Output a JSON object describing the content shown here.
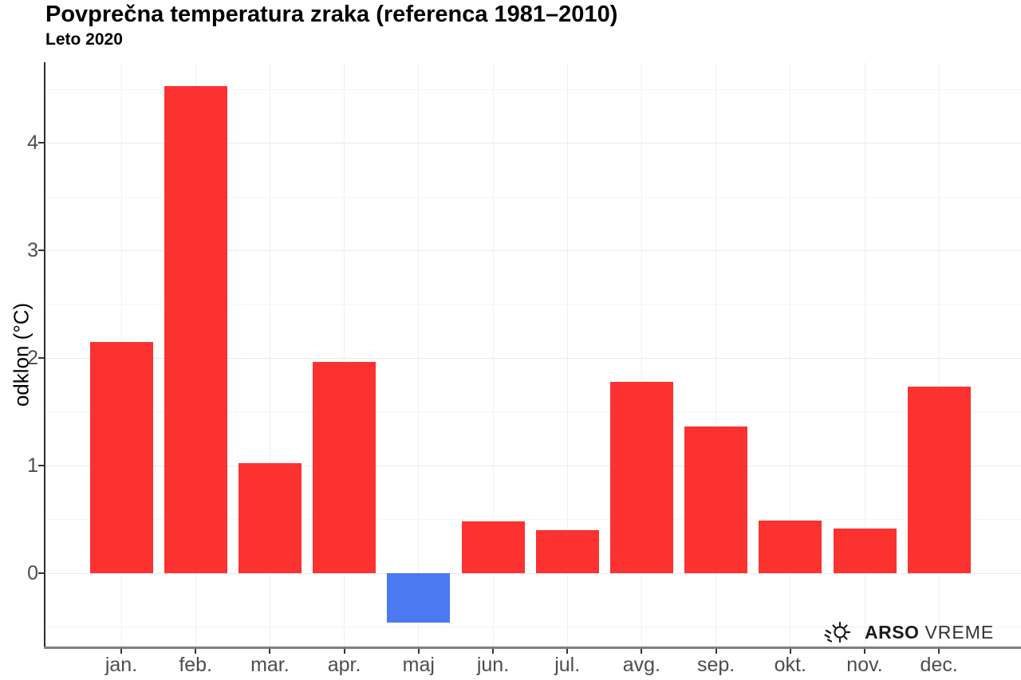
{
  "header": {
    "title": "Povprečna temperatura zraka (referenca 1981–2010)",
    "subtitle": "Leto 2020"
  },
  "branding": {
    "agency": "ARSO",
    "product": "VREME",
    "icon": "sun-icon"
  },
  "chart_data": {
    "type": "bar",
    "title": "Povprečna temperatura zraka (referenca 1981–2010)",
    "subtitle": "Leto 2020",
    "categories": [
      "jan.",
      "feb.",
      "mar.",
      "apr.",
      "maj",
      "jun.",
      "jul.",
      "avg.",
      "sep.",
      "okt.",
      "nov.",
      "dec."
    ],
    "values": [
      2.15,
      4.53,
      1.02,
      1.96,
      -0.46,
      0.48,
      0.4,
      1.78,
      1.36,
      0.49,
      0.41,
      1.73
    ],
    "xlabel": "",
    "ylabel": "odklon (°C)",
    "ylim": [
      -0.7,
      4.75
    ],
    "y_major_ticks": [
      0,
      1,
      2,
      3,
      4
    ],
    "y_minor_ticks": [
      -0.5,
      0.5,
      1.5,
      2.5,
      3.5,
      4.5
    ],
    "grid": true,
    "legend": false,
    "colors": {
      "positive": "#FB322F",
      "negative": "#4B79F1",
      "grid_major": "#E8E8E8",
      "grid_minor": "#F4F4F4",
      "grid_vertical": "#F0F0F0",
      "axis_text": "#4D4D4D",
      "axis_line": "#2E2E2E",
      "baseline": "#7F7F7F"
    }
  }
}
